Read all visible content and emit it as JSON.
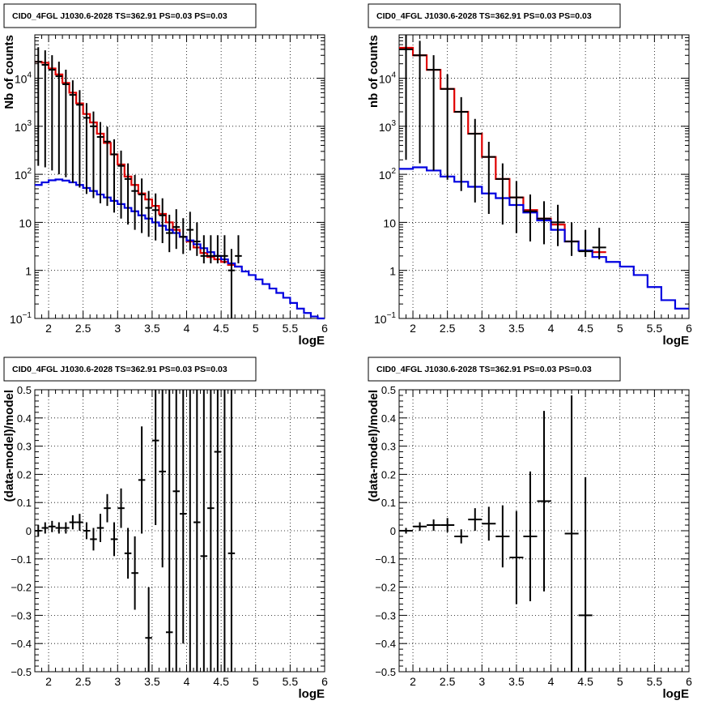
{
  "colors": {
    "model": "#e00000",
    "background": "#0000e0",
    "data": "#000000",
    "grid": "#000000"
  },
  "chart_data": [
    {
      "type": "line",
      "panel": "top-left",
      "title": "CID0_4FGL J1030.6-2028 TS=362.91 PS=0.03 PS=0.03",
      "xlabel": "logE",
      "ylabel": "Nb of counts",
      "xlim": [
        1.8,
        6
      ],
      "ylim": [
        0.1,
        80000
      ],
      "yscale": "log",
      "grid": true,
      "xticks": [
        "2",
        "2.5",
        "3",
        "3.5",
        "4",
        "4.5",
        "5",
        "5.5",
        "6"
      ],
      "yticks": [
        {
          "base": "10",
          "exp": "−1",
          "label": ""
        },
        {
          "base": "1",
          "exp": "",
          "label": ""
        },
        {
          "base": "10",
          "exp": "",
          "label": ""
        },
        {
          "base": "10",
          "exp": "2",
          "label": ""
        },
        {
          "base": "10",
          "exp": "3",
          "label": ""
        },
        {
          "base": "10",
          "exp": "4",
          "label": ""
        }
      ],
      "bin_width": 0.1,
      "series": [
        {
          "name": "",
          "kind": "step",
          "color_key": "model",
          "x": [
            1.8,
            1.9,
            2.0,
            2.1,
            2.2,
            2.3,
            2.4,
            2.5,
            2.6,
            2.7,
            2.8,
            2.9,
            3.0,
            3.1,
            3.2,
            3.3,
            3.4,
            3.5,
            3.6,
            3.7,
            3.8,
            3.9,
            4.0,
            4.1,
            4.2,
            4.3,
            4.4,
            4.5,
            4.6,
            4.7
          ],
          "values": [
            22000,
            21000,
            16000,
            12000,
            8000,
            5000,
            3000,
            1800,
            1200,
            700,
            450,
            260,
            160,
            90,
            60,
            40,
            30,
            22,
            15,
            10,
            7,
            5,
            4,
            3,
            2.3,
            1.9,
            1.7,
            1.5,
            1.3,
            1.2
          ]
        },
        {
          "name": "",
          "kind": "step",
          "color_key": "background",
          "x": [
            1.8,
            1.9,
            2.0,
            2.1,
            2.2,
            2.3,
            2.4,
            2.5,
            2.6,
            2.7,
            2.8,
            2.9,
            3.0,
            3.1,
            3.2,
            3.3,
            3.4,
            3.5,
            3.6,
            3.7,
            3.8,
            3.9,
            4.0,
            4.1,
            4.2,
            4.3,
            4.4,
            4.5,
            4.6,
            4.7,
            4.8,
            4.9,
            5.0,
            5.1,
            5.2,
            5.3,
            5.4,
            5.5,
            5.6,
            5.7,
            5.8,
            5.9
          ],
          "values": [
            60,
            68,
            75,
            78,
            74,
            68,
            60,
            52,
            45,
            38,
            33,
            28,
            24,
            20,
            17,
            14,
            12,
            10,
            8.5,
            7,
            6,
            5,
            4.2,
            3.5,
            2.9,
            2.4,
            2.0,
            1.7,
            1.4,
            1.2,
            0.95,
            0.8,
            0.65,
            0.52,
            0.42,
            0.34,
            0.27,
            0.21,
            0.16,
            0.13,
            0.11,
            0.1
          ]
        },
        {
          "name": "",
          "kind": "points",
          "color_key": "data",
          "x": [
            1.85,
            1.95,
            2.05,
            2.15,
            2.25,
            2.35,
            2.45,
            2.55,
            2.65,
            2.75,
            2.85,
            2.95,
            3.05,
            3.15,
            3.25,
            3.35,
            3.45,
            3.55,
            3.65,
            3.75,
            3.85,
            3.95,
            4.05,
            4.15,
            4.25,
            4.35,
            4.45,
            4.55,
            4.65,
            4.75
          ],
          "values": [
            22000,
            19000,
            15000,
            11000,
            7500,
            4500,
            2800,
            1500,
            1000,
            600,
            480,
            260,
            150,
            80,
            45,
            38,
            20,
            18,
            14,
            6,
            8,
            5,
            7,
            4,
            2,
            2,
            2,
            2,
            1,
            2
          ],
          "yerr_low": [
            21850,
            18860,
            14880,
            10900,
            7413,
            4433,
            2747,
            1461,
            968,
            575,
            458,
            244,
            138,
            71,
            38,
            32,
            15,
            13.8,
            10.3,
            3.6,
            5.2,
            2.8,
            4.4,
            2,
            0.6,
            0.6,
            0.6,
            0.6,
            0.9,
            0.6
          ],
          "yerr_high": [
            22150,
            19140,
            15120,
            11100,
            7587,
            4567,
            2853,
            1539,
            1032,
            625,
            502,
            276,
            162,
            89,
            52,
            44,
            25,
            22,
            17.7,
            8.4,
            10.8,
            7.2,
            9.6,
            6,
            3.4,
            3.4,
            3.4,
            3.4,
            1.8,
            3.4
          ]
        }
      ]
    },
    {
      "type": "line",
      "panel": "top-right",
      "title": "CID0_4FGL J1030.6-2028 TS=362.91 PS=0.03 PS=0.03",
      "xlabel": "logE",
      "ylabel": "nb of counts",
      "xlim": [
        1.8,
        6
      ],
      "ylim": [
        0.1,
        80000
      ],
      "yscale": "log",
      "grid": true,
      "xticks": [
        "2",
        "2.5",
        "3",
        "3.5",
        "4",
        "4.5",
        "5",
        "5.5",
        "6"
      ],
      "yticks": [
        {
          "base": "10",
          "exp": "−1",
          "label": ""
        },
        {
          "base": "1",
          "exp": "",
          "label": ""
        },
        {
          "base": "10",
          "exp": "",
          "label": ""
        },
        {
          "base": "10",
          "exp": "2",
          "label": ""
        },
        {
          "base": "10",
          "exp": "3",
          "label": ""
        },
        {
          "base": "10",
          "exp": "4",
          "label": ""
        }
      ],
      "bin_width": 0.2,
      "series": [
        {
          "name": "",
          "kind": "step",
          "color_key": "model",
          "x": [
            1.8,
            2.0,
            2.2,
            2.4,
            2.6,
            2.8,
            3.0,
            3.2,
            3.4,
            3.6,
            3.8,
            4.0,
            4.2,
            4.4,
            4.6
          ],
          "values": [
            43000,
            30000,
            15000,
            6000,
            2000,
            700,
            230,
            80,
            33,
            18,
            12,
            9,
            4,
            2.6,
            2.4
          ]
        },
        {
          "name": "",
          "kind": "step",
          "color_key": "background",
          "x": [
            1.8,
            2.0,
            2.2,
            2.4,
            2.6,
            2.8,
            3.0,
            3.2,
            3.4,
            3.6,
            3.8,
            4.0,
            4.2,
            4.4,
            4.6,
            4.8,
            5.0,
            5.2,
            5.4,
            5.6,
            5.8
          ],
          "values": [
            130,
            140,
            120,
            90,
            70,
            55,
            40,
            32,
            23,
            16,
            11,
            7,
            4,
            2.6,
            1.9,
            1.5,
            1.2,
            0.8,
            0.45,
            0.24,
            0.16
          ]
        },
        {
          "name": "",
          "kind": "points",
          "color_key": "data",
          "x": [
            1.9,
            2.1,
            2.3,
            2.5,
            2.7,
            2.9,
            3.1,
            3.3,
            3.5,
            3.7,
            3.9,
            4.1,
            4.3,
            4.5,
            4.7
          ],
          "values": [
            40000,
            30000,
            15000,
            6000,
            2000,
            700,
            230,
            80,
            33,
            17,
            12,
            10,
            4,
            2.5,
            3
          ],
          "yerr_low": [
            39800,
            29830,
            14880,
            5923,
            1955,
            674,
            215,
            71,
            27,
            13,
            8.5,
            6.8,
            2,
            0.6,
            1.3
          ],
          "yerr_high": [
            40200,
            30170,
            15120,
            6077,
            2045,
            726,
            245,
            89,
            39,
            21,
            15.5,
            13.2,
            6,
            4.4,
            4.7
          ]
        }
      ]
    },
    {
      "type": "scatter",
      "panel": "bottom-left",
      "title": "CID0_4FGL J1030.6-2028 TS=362.91 PS=0.03 PS=0.03",
      "xlabel": "logE",
      "ylabel": "(data-model)/model",
      "xlim": [
        1.8,
        6
      ],
      "ylim": [
        -0.5,
        0.5
      ],
      "grid": true,
      "xticks": [
        "2",
        "2.5",
        "3",
        "3.5",
        "4",
        "4.5",
        "5",
        "5.5",
        "6"
      ],
      "yticks": [
        "−0.5",
        "−0.4",
        "−0.3",
        "−0.2",
        "−0.1",
        "0",
        "0.1",
        "0.2",
        "0.3",
        "0.4",
        "0.5"
      ],
      "bin_width": 0.1,
      "series": [
        {
          "name": "",
          "kind": "points",
          "color_key": "data",
          "x": [
            1.85,
            1.95,
            2.05,
            2.15,
            2.25,
            2.35,
            2.45,
            2.55,
            2.65,
            2.75,
            2.85,
            2.95,
            3.05,
            3.15,
            3.25,
            3.35,
            3.45,
            3.55,
            3.65,
            3.75,
            3.85,
            3.95,
            4.05,
            4.15,
            4.25,
            4.35,
            4.45,
            4.55,
            4.65
          ],
          "values": [
            0.0,
            0.01,
            0.015,
            0.01,
            0.01,
            0.03,
            0.03,
            0.0,
            -0.03,
            0.01,
            0.08,
            -0.03,
            0.08,
            -0.08,
            -0.15,
            0.18,
            -0.38,
            0.32,
            0.21,
            -0.36,
            0.14,
            0.06,
            null,
            0.03,
            -0.09,
            0.08,
            0.28,
            null,
            -0.08
          ],
          "yerr": [
            0.02,
            0.02,
            0.02,
            0.02,
            0.02,
            0.025,
            0.03,
            0.03,
            0.04,
            0.05,
            0.05,
            0.06,
            0.07,
            0.09,
            0.13,
            0.19,
            0.18,
            0.3,
            0.34,
            0.9,
            0.9,
            0.46,
            0.9,
            0.9,
            0.9,
            0.9,
            0.9,
            0.9,
            0.9
          ]
        }
      ]
    },
    {
      "type": "scatter",
      "panel": "bottom-right",
      "title": "CID0_4FGL J1030.6-2028 TS=362.91 PS=0.03 PS=0.03",
      "xlabel": "logE",
      "ylabel": "(data-model)/model",
      "xlim": [
        1.8,
        6
      ],
      "ylim": [
        -0.5,
        0.5
      ],
      "grid": true,
      "xticks": [
        "2",
        "2.5",
        "3",
        "3.5",
        "4",
        "4.5",
        "5",
        "5.5",
        "6"
      ],
      "yticks": [
        "−0.5",
        "−0.4",
        "−0.3",
        "−0.2",
        "−0.1",
        "0",
        "0.1",
        "0.2",
        "0.3",
        "0.4",
        "0.5"
      ],
      "bin_width": 0.2,
      "series": [
        {
          "name": "",
          "kind": "points",
          "color_key": "data",
          "x": [
            1.9,
            2.1,
            2.3,
            2.5,
            2.7,
            2.9,
            3.1,
            3.3,
            3.5,
            3.7,
            3.9,
            4.3,
            4.5
          ],
          "values": [
            0.0,
            0.015,
            0.02,
            0.02,
            -0.02,
            0.04,
            0.025,
            -0.02,
            -0.095,
            -0.02,
            0.105,
            -0.01,
            -0.3
          ],
          "yerr": [
            0.01,
            0.015,
            0.02,
            0.025,
            0.025,
            0.04,
            0.06,
            0.11,
            0.165,
            0.23,
            0.32,
            0.49,
            0.49
          ]
        }
      ]
    }
  ]
}
